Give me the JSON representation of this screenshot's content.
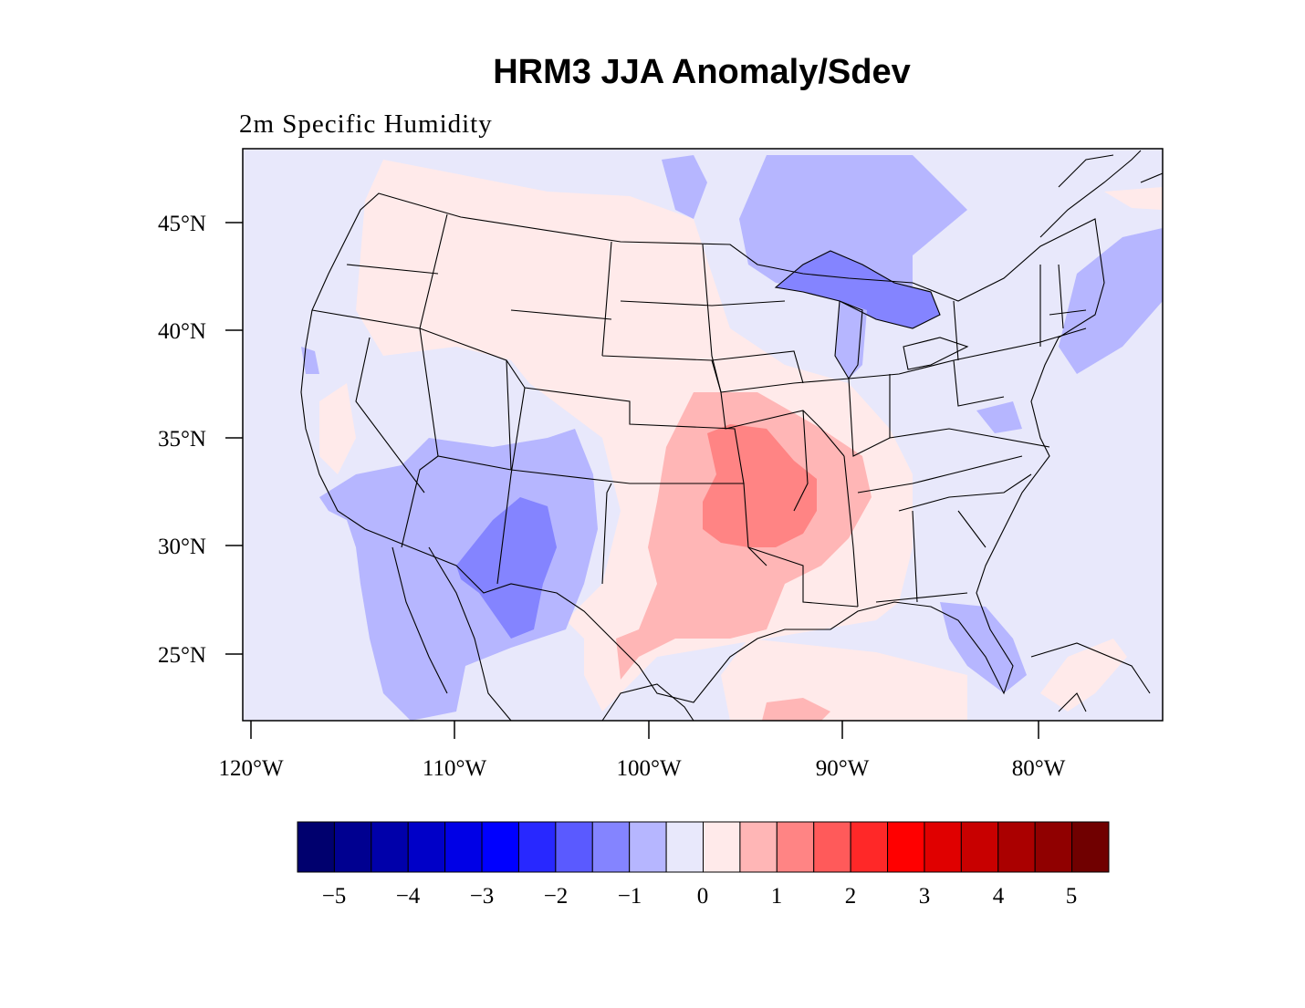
{
  "title": "HRM3 JJA Anomaly/Sdev",
  "subtitle": "2m Specific Humidity",
  "map": {
    "projection": "lambert-conformal",
    "region": "Contiguous United States",
    "background_value_color": "#e8e8fb",
    "lat_ticks": [
      "45°N",
      "40°N",
      "35°N",
      "30°N",
      "25°N"
    ],
    "lon_ticks": [
      "120°W",
      "110°W",
      "100°W",
      "90°W",
      "80°W"
    ],
    "anomaly_regions": [
      {
        "name": "southern-plains-max",
        "level": "1.5 to 2",
        "color": "#ff8484"
      },
      {
        "name": "southern-plains",
        "level": "1 to 1.5",
        "color": "#ffb6b6"
      },
      {
        "name": "central-states",
        "level": "0 to 1",
        "color": "#ffeaea"
      },
      {
        "name": "four-corners",
        "level": "-1 to -0.5",
        "color": "#b6b6ff"
      },
      {
        "name": "new-mexico-min",
        "level": "-1.5 to -1",
        "color": "#8484ff"
      },
      {
        "name": "great-lakes",
        "level": "-1.5 to -1",
        "color": "#8484ff"
      }
    ]
  },
  "colorbar": {
    "colors": [
      "#00006e",
      "#000090",
      "#0000aa",
      "#0000c8",
      "#0000e6",
      "#0000ff",
      "#2828ff",
      "#5a5aff",
      "#8484ff",
      "#b6b6ff",
      "#e8e8fb",
      "#ffeaea",
      "#ffb6b6",
      "#ff8484",
      "#ff5a5a",
      "#ff2828",
      "#ff0000",
      "#e00000",
      "#c80000",
      "#aa0000",
      "#900000",
      "#700000"
    ],
    "tick_labels": [
      "−5",
      "−4",
      "−3",
      "−2",
      "−1",
      "0",
      "1",
      "2",
      "3",
      "4",
      "5"
    ]
  }
}
